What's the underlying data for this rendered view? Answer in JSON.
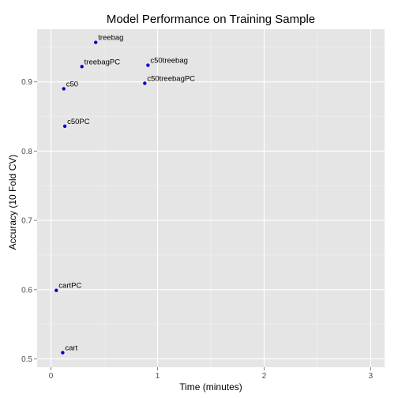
{
  "chart_data": {
    "type": "scatter",
    "title": "Model Performance on Training Sample",
    "xlabel": "Time (minutes)",
    "ylabel": "Accuracy (10 Fold CV)",
    "xlim": [
      -0.13,
      3.13
    ],
    "ylim": [
      0.488,
      0.976
    ],
    "x_ticks": [
      0,
      1,
      2,
      3
    ],
    "x_tick_labels": [
      "0",
      "1",
      "2",
      "3"
    ],
    "y_ticks": [
      0.5,
      0.6,
      0.7,
      0.8,
      0.9
    ],
    "y_tick_labels": [
      "0.5",
      "0.6",
      "0.7",
      "0.8",
      "0.9"
    ],
    "grid": true,
    "point_color": "#0000cc",
    "panel_color": "#e5e5e5",
    "points": [
      {
        "label": "treebag",
        "x": 0.42,
        "y": 0.957
      },
      {
        "label": "treebagPC",
        "x": 0.29,
        "y": 0.922
      },
      {
        "label": "c50treebag",
        "x": 0.91,
        "y": 0.924
      },
      {
        "label": "c50treebagPC",
        "x": 0.88,
        "y": 0.898
      },
      {
        "label": "c50",
        "x": 0.12,
        "y": 0.89
      },
      {
        "label": "c50PC",
        "x": 0.13,
        "y": 0.836
      },
      {
        "label": "cartPC",
        "x": 0.05,
        "y": 0.599
      },
      {
        "label": "cart",
        "x": 0.11,
        "y": 0.509
      }
    ]
  }
}
